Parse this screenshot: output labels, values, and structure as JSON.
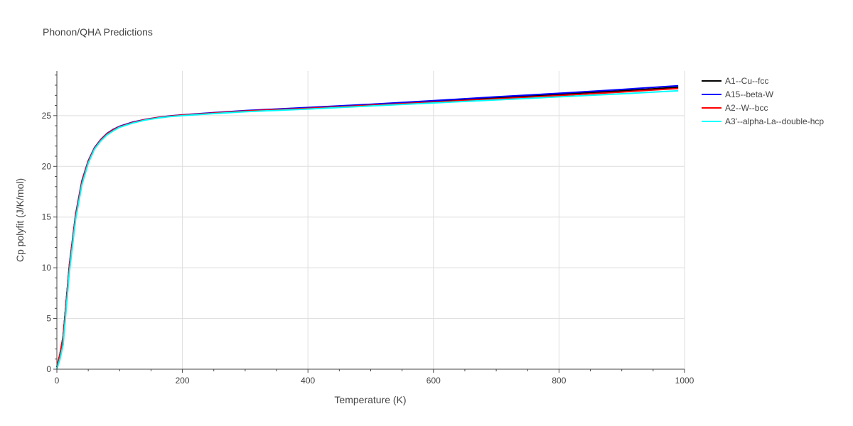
{
  "chart_data": {
    "type": "line",
    "title": "Phonon/QHA Predictions",
    "xlabel": "Temperature (K)",
    "ylabel": "Cp polyfit (J/K/mol)",
    "xlim": [
      0,
      1000
    ],
    "ylim": [
      0,
      29.4
    ],
    "xticks": [
      0,
      200,
      400,
      600,
      800,
      1000
    ],
    "yticks": [
      0,
      5,
      10,
      15,
      20,
      25
    ],
    "grid": true,
    "legend_position": "top-right",
    "x": [
      0,
      5,
      10,
      20,
      30,
      40,
      50,
      60,
      70,
      80,
      90,
      100,
      120,
      140,
      160,
      180,
      200,
      250,
      300,
      400,
      500,
      600,
      700,
      800,
      900,
      990
    ],
    "series": [
      {
        "name": "A1--Cu--fcc",
        "color": "#000000",
        "values": [
          0.2,
          1.5,
          3.2,
          10.2,
          15.2,
          18.5,
          20.5,
          21.8,
          22.6,
          23.2,
          23.6,
          23.9,
          24.3,
          24.6,
          24.8,
          24.95,
          25.05,
          25.25,
          25.45,
          25.75,
          26.05,
          26.4,
          26.75,
          27.1,
          27.45,
          27.8
        ]
      },
      {
        "name": "A15--beta-W",
        "color": "#0000ff",
        "values": [
          0.2,
          1.5,
          3.2,
          10.3,
          15.3,
          18.6,
          20.55,
          21.85,
          22.65,
          23.25,
          23.65,
          23.95,
          24.35,
          24.62,
          24.82,
          24.97,
          25.08,
          25.3,
          25.5,
          25.8,
          26.12,
          26.48,
          26.85,
          27.2,
          27.58,
          27.95
        ]
      },
      {
        "name": "A2--W--bcc",
        "color": "#ff0000",
        "values": [
          0.2,
          1.5,
          3.2,
          10.2,
          15.2,
          18.5,
          20.5,
          21.8,
          22.6,
          23.2,
          23.6,
          23.9,
          24.3,
          24.6,
          24.8,
          24.95,
          25.05,
          25.25,
          25.45,
          25.72,
          26.02,
          26.33,
          26.65,
          26.98,
          27.33,
          27.68
        ]
      },
      {
        "name": "A3'--alpha-La--double-hcp",
        "color": "#00ffff",
        "values": [
          0.0,
          1.0,
          2.4,
          9.6,
          14.8,
          18.2,
          20.3,
          21.7,
          22.5,
          23.1,
          23.5,
          23.85,
          24.25,
          24.55,
          24.75,
          24.9,
          25.0,
          25.2,
          25.38,
          25.65,
          25.95,
          26.25,
          26.55,
          26.85,
          27.15,
          27.45
        ]
      }
    ]
  }
}
